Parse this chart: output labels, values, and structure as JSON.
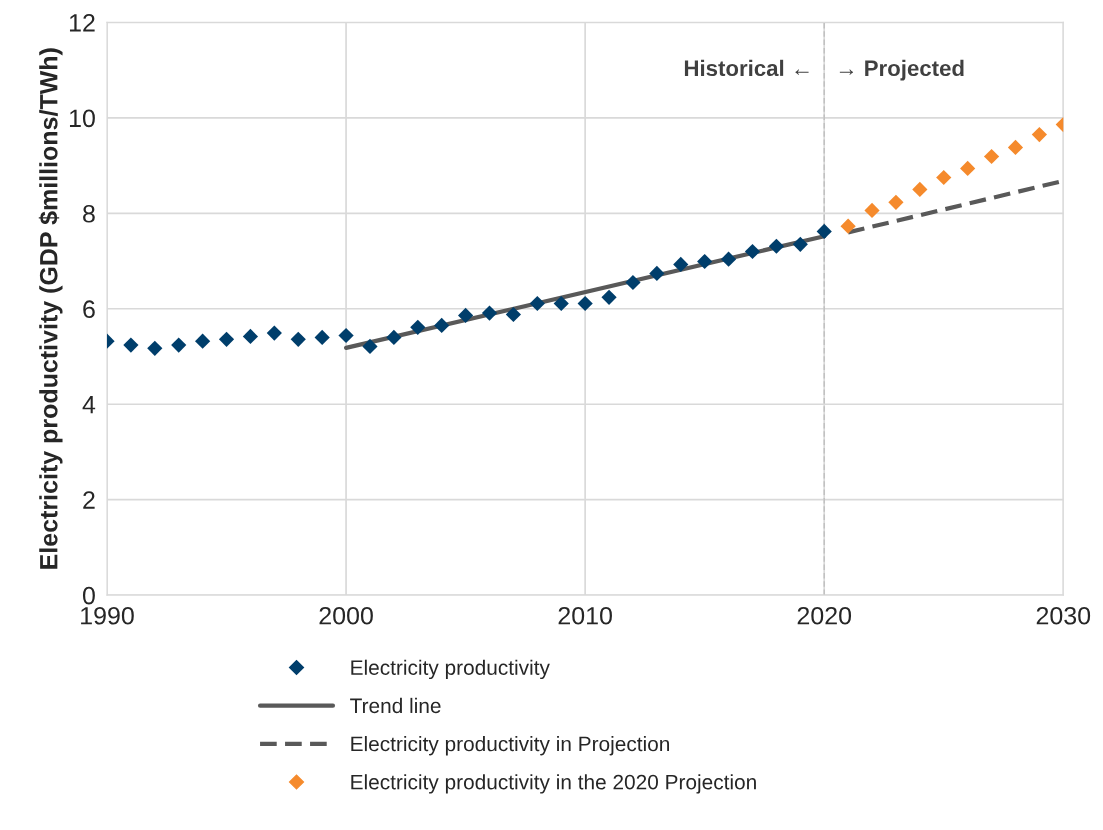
{
  "chart_data": {
    "type": "scatter",
    "ylabel": "Electricity productivity (GDP $millions/TWh)",
    "xlim": [
      1990,
      2030
    ],
    "xticks": [
      1990,
      2000,
      2010,
      2020,
      2030
    ],
    "ylim": [
      0,
      12
    ],
    "yticks": [
      0,
      2,
      4,
      6,
      8,
      10,
      12
    ],
    "grid": true,
    "legend": "bottom",
    "series": [
      {
        "name": "Electricity productivity",
        "marker": "diamond",
        "color": "#003e6b",
        "x": [
          1990,
          1991,
          1992,
          1993,
          1994,
          1995,
          1996,
          1997,
          1998,
          1999,
          2000,
          2001,
          2002,
          2003,
          2004,
          2005,
          2006,
          2007,
          2008,
          2009,
          2010,
          2011,
          2012,
          2013,
          2014,
          2015,
          2016,
          2017,
          2018,
          2019,
          2020
        ],
        "values": [
          5.32,
          5.24,
          5.17,
          5.24,
          5.32,
          5.36,
          5.42,
          5.49,
          5.36,
          5.4,
          5.44,
          5.21,
          5.4,
          5.61,
          5.65,
          5.86,
          5.91,
          5.88,
          6.11,
          6.11,
          6.11,
          6.24,
          6.55,
          6.74,
          6.93,
          6.99,
          7.04,
          7.2,
          7.31,
          7.35,
          7.62
        ]
      },
      {
        "name": "Trend line",
        "type": "line",
        "line_style": "solid",
        "color": "#595959",
        "x": [
          2000,
          2020
        ],
        "values": [
          5.18,
          7.52
        ]
      },
      {
        "name": "Electricity productivity in Projection",
        "type": "line",
        "line_style": "dashed",
        "color": "#595959",
        "x": [
          2021,
          2030
        ],
        "values": [
          7.6,
          8.68
        ]
      },
      {
        "name": "Electricity productivity in the 2020 Projection",
        "marker": "diamond",
        "color": "#f58a2c",
        "x": [
          2021,
          2022,
          2023,
          2024,
          2025,
          2026,
          2027,
          2028,
          2029,
          2030
        ],
        "values": [
          7.73,
          8.06,
          8.23,
          8.5,
          8.75,
          8.94,
          9.19,
          9.38,
          9.65,
          9.86
        ]
      }
    ],
    "ref_lines": [
      {
        "axis": "x",
        "value": 2020,
        "color": "#bfbfbf",
        "line_style": "dashed"
      }
    ],
    "annotations": [
      {
        "text": "Historical ←",
        "x": 2020,
        "y": 11
      },
      {
        "text": "→ Projected",
        "x": 2020,
        "y": 11
      }
    ]
  }
}
